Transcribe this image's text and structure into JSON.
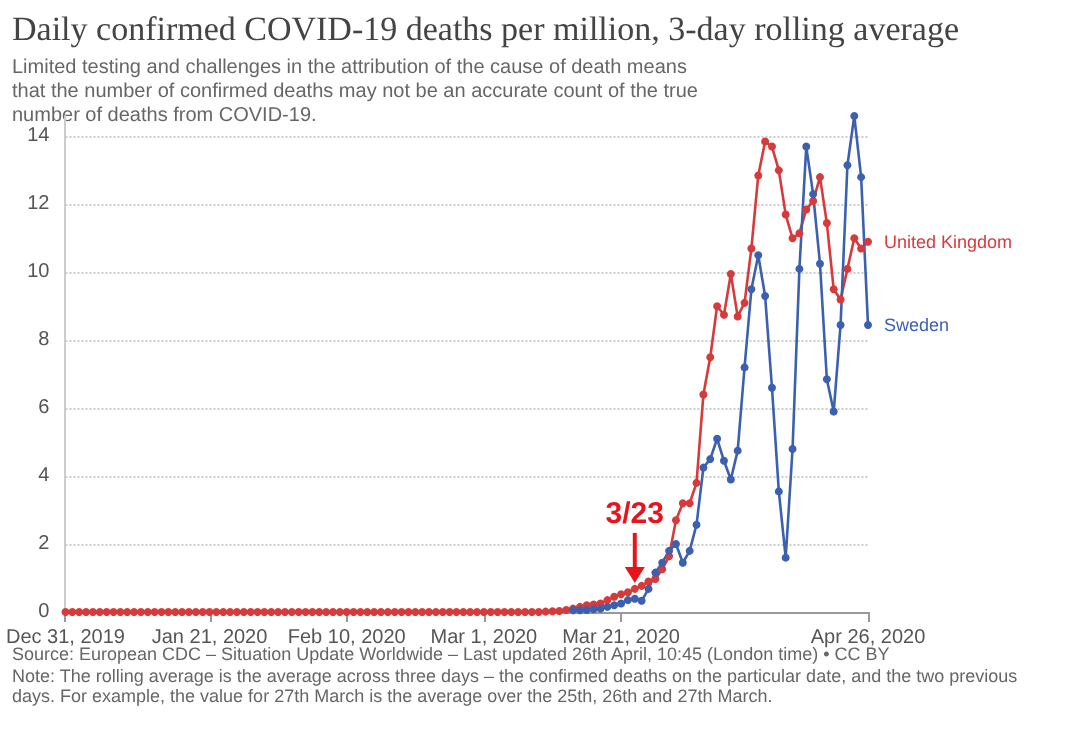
{
  "chart_data": {
    "type": "line",
    "title": "Daily confirmed COVID-19 deaths per million, 3-day rolling average",
    "subtitle": "Limited testing and challenges in the attribution of the cause of death means that the number of confirmed deaths may not be an accurate count of the true number of deaths from COVID-19.",
    "x": [
      "2019-12-31",
      "2020-01-01",
      "2020-01-02",
      "2020-01-03",
      "2020-01-04",
      "2020-01-05",
      "2020-01-06",
      "2020-01-07",
      "2020-01-08",
      "2020-01-09",
      "2020-01-10",
      "2020-01-11",
      "2020-01-12",
      "2020-01-13",
      "2020-01-14",
      "2020-01-15",
      "2020-01-16",
      "2020-01-17",
      "2020-01-18",
      "2020-01-19",
      "2020-01-20",
      "2020-01-21",
      "2020-01-22",
      "2020-01-23",
      "2020-01-24",
      "2020-01-25",
      "2020-01-26",
      "2020-01-27",
      "2020-01-28",
      "2020-01-29",
      "2020-01-30",
      "2020-01-31",
      "2020-02-01",
      "2020-02-02",
      "2020-02-03",
      "2020-02-04",
      "2020-02-05",
      "2020-02-06",
      "2020-02-07",
      "2020-02-08",
      "2020-02-09",
      "2020-02-10",
      "2020-02-11",
      "2020-02-12",
      "2020-02-13",
      "2020-02-14",
      "2020-02-15",
      "2020-02-16",
      "2020-02-17",
      "2020-02-18",
      "2020-02-19",
      "2020-02-20",
      "2020-02-21",
      "2020-02-22",
      "2020-02-23",
      "2020-02-24",
      "2020-02-25",
      "2020-02-26",
      "2020-02-27",
      "2020-02-28",
      "2020-02-29",
      "2020-03-01",
      "2020-03-02",
      "2020-03-03",
      "2020-03-04",
      "2020-03-05",
      "2020-03-06",
      "2020-03-07",
      "2020-03-08",
      "2020-03-09",
      "2020-03-10",
      "2020-03-11",
      "2020-03-12",
      "2020-03-13",
      "2020-03-14",
      "2020-03-15",
      "2020-03-16",
      "2020-03-17",
      "2020-03-18",
      "2020-03-19",
      "2020-03-20",
      "2020-03-21",
      "2020-03-22",
      "2020-03-23",
      "2020-03-24",
      "2020-03-25",
      "2020-03-26",
      "2020-03-27",
      "2020-03-28",
      "2020-03-29",
      "2020-03-30",
      "2020-03-31",
      "2020-04-01",
      "2020-04-02",
      "2020-04-03",
      "2020-04-04",
      "2020-04-05",
      "2020-04-06",
      "2020-04-07",
      "2020-04-08",
      "2020-04-09",
      "2020-04-10",
      "2020-04-11",
      "2020-04-12",
      "2020-04-13",
      "2020-04-14",
      "2020-04-15",
      "2020-04-16",
      "2020-04-17",
      "2020-04-18",
      "2020-04-19",
      "2020-04-20",
      "2020-04-21",
      "2020-04-22",
      "2020-04-23",
      "2020-04-24",
      "2020-04-25",
      "2020-04-26"
    ],
    "series": [
      {
        "name": "United Kingdom",
        "color": "#d73a3a",
        "values": [
          0,
          0,
          0,
          0,
          0,
          0,
          0,
          0,
          0,
          0,
          0,
          0,
          0,
          0,
          0,
          0,
          0,
          0,
          0,
          0,
          0,
          0,
          0,
          0,
          0,
          0,
          0,
          0,
          0,
          0,
          0,
          0,
          0,
          0,
          0,
          0,
          0,
          0,
          0,
          0,
          0,
          0,
          0,
          0,
          0,
          0,
          0,
          0,
          0,
          0,
          0,
          0,
          0,
          0,
          0,
          0,
          0,
          0,
          0,
          0,
          0,
          0,
          0,
          0,
          0,
          0,
          0,
          0,
          0,
          0,
          0.01,
          0.02,
          0.03,
          0.06,
          0.1,
          0.15,
          0.2,
          0.22,
          0.25,
          0.35,
          0.45,
          0.52,
          0.58,
          0.68,
          0.77,
          0.9,
          0.97,
          1.26,
          1.64,
          2.7,
          3.2,
          3.2,
          3.8,
          6.4,
          7.5,
          9.0,
          8.75,
          9.95,
          8.7,
          9.1,
          10.7,
          12.85,
          13.85,
          13.7,
          13.0,
          11.7,
          11.0,
          11.15,
          11.85,
          12.1,
          12.8,
          11.45,
          9.5,
          9.2,
          10.1,
          11.0,
          10.7,
          10.9
        ]
      },
      {
        "name": "Sweden",
        "color": "#3c60b0",
        "values": [
          null,
          null,
          null,
          null,
          null,
          null,
          null,
          null,
          null,
          null,
          null,
          null,
          null,
          null,
          null,
          null,
          null,
          null,
          null,
          null,
          null,
          null,
          null,
          null,
          null,
          null,
          null,
          null,
          null,
          null,
          null,
          null,
          null,
          null,
          null,
          null,
          null,
          null,
          null,
          null,
          null,
          null,
          null,
          null,
          null,
          null,
          null,
          null,
          null,
          null,
          null,
          null,
          null,
          null,
          null,
          null,
          null,
          null,
          null,
          null,
          null,
          null,
          null,
          null,
          null,
          null,
          null,
          null,
          null,
          null,
          null,
          null,
          null,
          null,
          0.05,
          0.05,
          0.06,
          0.08,
          0.1,
          0.15,
          0.2,
          0.25,
          0.35,
          0.39,
          0.33,
          0.68,
          1.16,
          1.45,
          1.8,
          2.0,
          1.45,
          1.8,
          2.57,
          4.25,
          4.5,
          5.1,
          4.45,
          3.9,
          4.75,
          7.2,
          9.5,
          10.5,
          9.3,
          6.6,
          3.55,
          1.6,
          4.8,
          10.1,
          13.7,
          12.3,
          10.25,
          6.85,
          5.9,
          8.45,
          13.15,
          14.6,
          12.8,
          8.45
        ]
      }
    ],
    "xlim": [
      "2019-12-31",
      "2020-04-26"
    ],
    "xticks": [
      {
        "value": "2019-12-31",
        "label": "Dec 31, 2019"
      },
      {
        "value": "2020-01-21",
        "label": "Jan 21, 2020"
      },
      {
        "value": "2020-02-10",
        "label": "Feb 10, 2020"
      },
      {
        "value": "2020-03-01",
        "label": "Mar 1, 2020"
      },
      {
        "value": "2020-03-21",
        "label": "Mar 21, 2020"
      },
      {
        "value": "2020-04-26",
        "label": "Apr 26, 2020"
      }
    ],
    "ylim": [
      0,
      14.6
    ],
    "yticks": [
      0,
      2,
      4,
      6,
      8,
      10,
      12,
      14
    ],
    "grid": "y",
    "legend": false,
    "marker": "circle",
    "line_style": "solid",
    "annotations": [
      {
        "text": "3/23",
        "x": "2020-03-23",
        "y": 0.68
      },
      "Source: European CDC – Situation Update Worldwide – Last updated 26th April, 10:45 (London time) • CC BY",
      "Note: The rolling average is the average across three days – the confirmed deaths on the particular date, and the two previous days. For example, the value for 27th March is the average over the 25th, 26th and 27th March."
    ]
  }
}
